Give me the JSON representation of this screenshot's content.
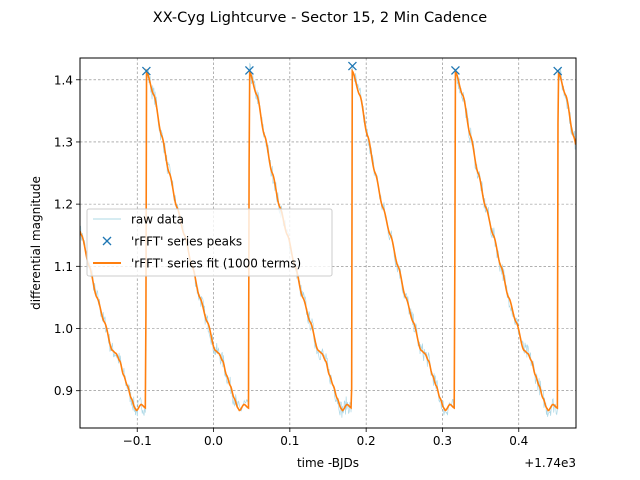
{
  "chart_data": {
    "type": "line",
    "title": "XX-Cyg Lightcurve - Sector 15, 2 Min Cadence",
    "xlabel": "time -BJDs",
    "ylabel": "differential magnitude",
    "x_offset_label": "+1.74e3",
    "xlim": [
      -0.175,
      0.475
    ],
    "ylim": [
      0.84,
      1.435
    ],
    "grid": true,
    "legend_position": "center-left",
    "x_ticks": [
      {
        "value": -0.1,
        "label": "−0.1"
      },
      {
        "value": 0.0,
        "label": "0.0"
      },
      {
        "value": 0.1,
        "label": "0.1"
      },
      {
        "value": 0.2,
        "label": "0.2"
      },
      {
        "value": 0.3,
        "label": "0.3"
      },
      {
        "value": 0.4,
        "label": "0.4"
      }
    ],
    "y_ticks": [
      {
        "value": 0.9,
        "label": "0.9"
      },
      {
        "value": 1.0,
        "label": "1.0"
      },
      {
        "value": 1.1,
        "label": "1.1"
      },
      {
        "value": 1.2,
        "label": "1.2"
      },
      {
        "value": 1.3,
        "label": "1.3"
      },
      {
        "value": 1.4,
        "label": "1.4"
      }
    ],
    "period": 0.1349,
    "series": [
      {
        "name": "raw data",
        "style": "line",
        "color": "#add8e6",
        "note_points": "raw points follow the fit with small scatter"
      },
      {
        "name": "'rFFT' series peaks",
        "style": "marker-x",
        "color": "#1f77b4",
        "x": [
          -0.088,
          0.047,
          0.182,
          0.317,
          0.451
        ],
        "y": [
          1.414,
          1.415,
          1.422,
          1.415,
          1.414
        ]
      },
      {
        "name": "'rFFT' series fit (1000 terms)",
        "style": "line",
        "color": "#ff7f0e",
        "phase_profile": [
          [
            0.0,
            1.414
          ],
          [
            0.01,
            1.375
          ],
          [
            0.02,
            1.31
          ],
          [
            0.03,
            1.25
          ],
          [
            0.04,
            1.195
          ],
          [
            0.05,
            1.15
          ],
          [
            0.06,
            1.1
          ],
          [
            0.07,
            1.05
          ],
          [
            0.08,
            1.01
          ],
          [
            0.09,
            0.965
          ],
          [
            0.095,
            0.96
          ],
          [
            0.1,
            0.948
          ],
          [
            0.105,
            0.925
          ],
          [
            0.11,
            0.908
          ],
          [
            0.115,
            0.888
          ],
          [
            0.12,
            0.872
          ],
          [
            0.122,
            0.868
          ],
          [
            0.128,
            0.878
          ],
          [
            0.134,
            0.872
          ],
          [
            0.141,
            0.9
          ],
          [
            0.15,
            1.0
          ],
          [
            0.16,
            1.15
          ],
          [
            0.17,
            1.3
          ],
          [
            0.178,
            1.385
          ],
          [
            0.1349,
            1.414
          ]
        ]
      }
    ]
  }
}
